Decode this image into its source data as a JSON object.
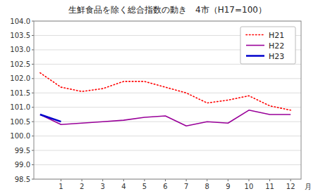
{
  "chart_data": {
    "type": "line",
    "title": "生鮮食品を除く総合指数の動き　4市（H17=100）",
    "xlabel": "月",
    "xlim": [
      -0.3,
      12.5
    ],
    "xticks": [
      1,
      2,
      3,
      4,
      5,
      6,
      7,
      8,
      9,
      10,
      11,
      12
    ],
    "ylim": [
      98.5,
      104.0
    ],
    "yticks": [
      98.5,
      {
        "value": 99.0,
        "label": "99.0"
      },
      99.5,
      {
        "value": 100.0,
        "label": "100.0"
      },
      100.5,
      {
        "value": 101.0,
        "label": "101.0"
      },
      101.5,
      {
        "value": 102.0,
        "label": "102.0"
      },
      102.5,
      {
        "value": 103.0,
        "label": "103.0"
      },
      103.5,
      {
        "value": 104.0,
        "label": "104.0"
      }
    ],
    "grid": "y",
    "legend": "upper right",
    "series": [
      {
        "name": "H21",
        "color": "#ff0000",
        "line_style": "dotted",
        "x": [
          0,
          1,
          2,
          3,
          4,
          5,
          6,
          7,
          8,
          9,
          10,
          11,
          12
        ],
        "values": [
          102.2,
          101.7,
          101.55,
          101.65,
          101.9,
          101.9,
          101.7,
          101.5,
          101.15,
          101.25,
          101.4,
          101.05,
          100.9
        ]
      },
      {
        "name": "H22",
        "color": "#990099",
        "line_style": "solid",
        "x": [
          0,
          1,
          2,
          3,
          4,
          5,
          6,
          7,
          8,
          9,
          10,
          11,
          12
        ],
        "values": [
          100.75,
          100.4,
          100.45,
          100.5,
          100.55,
          100.65,
          100.7,
          100.35,
          100.5,
          100.45,
          100.9,
          100.75,
          100.75
        ]
      },
      {
        "name": "H23",
        "color": "#0000cc",
        "line_style": "solid",
        "x": [
          0,
          1
        ],
        "values": [
          100.75,
          100.5
        ]
      }
    ]
  }
}
